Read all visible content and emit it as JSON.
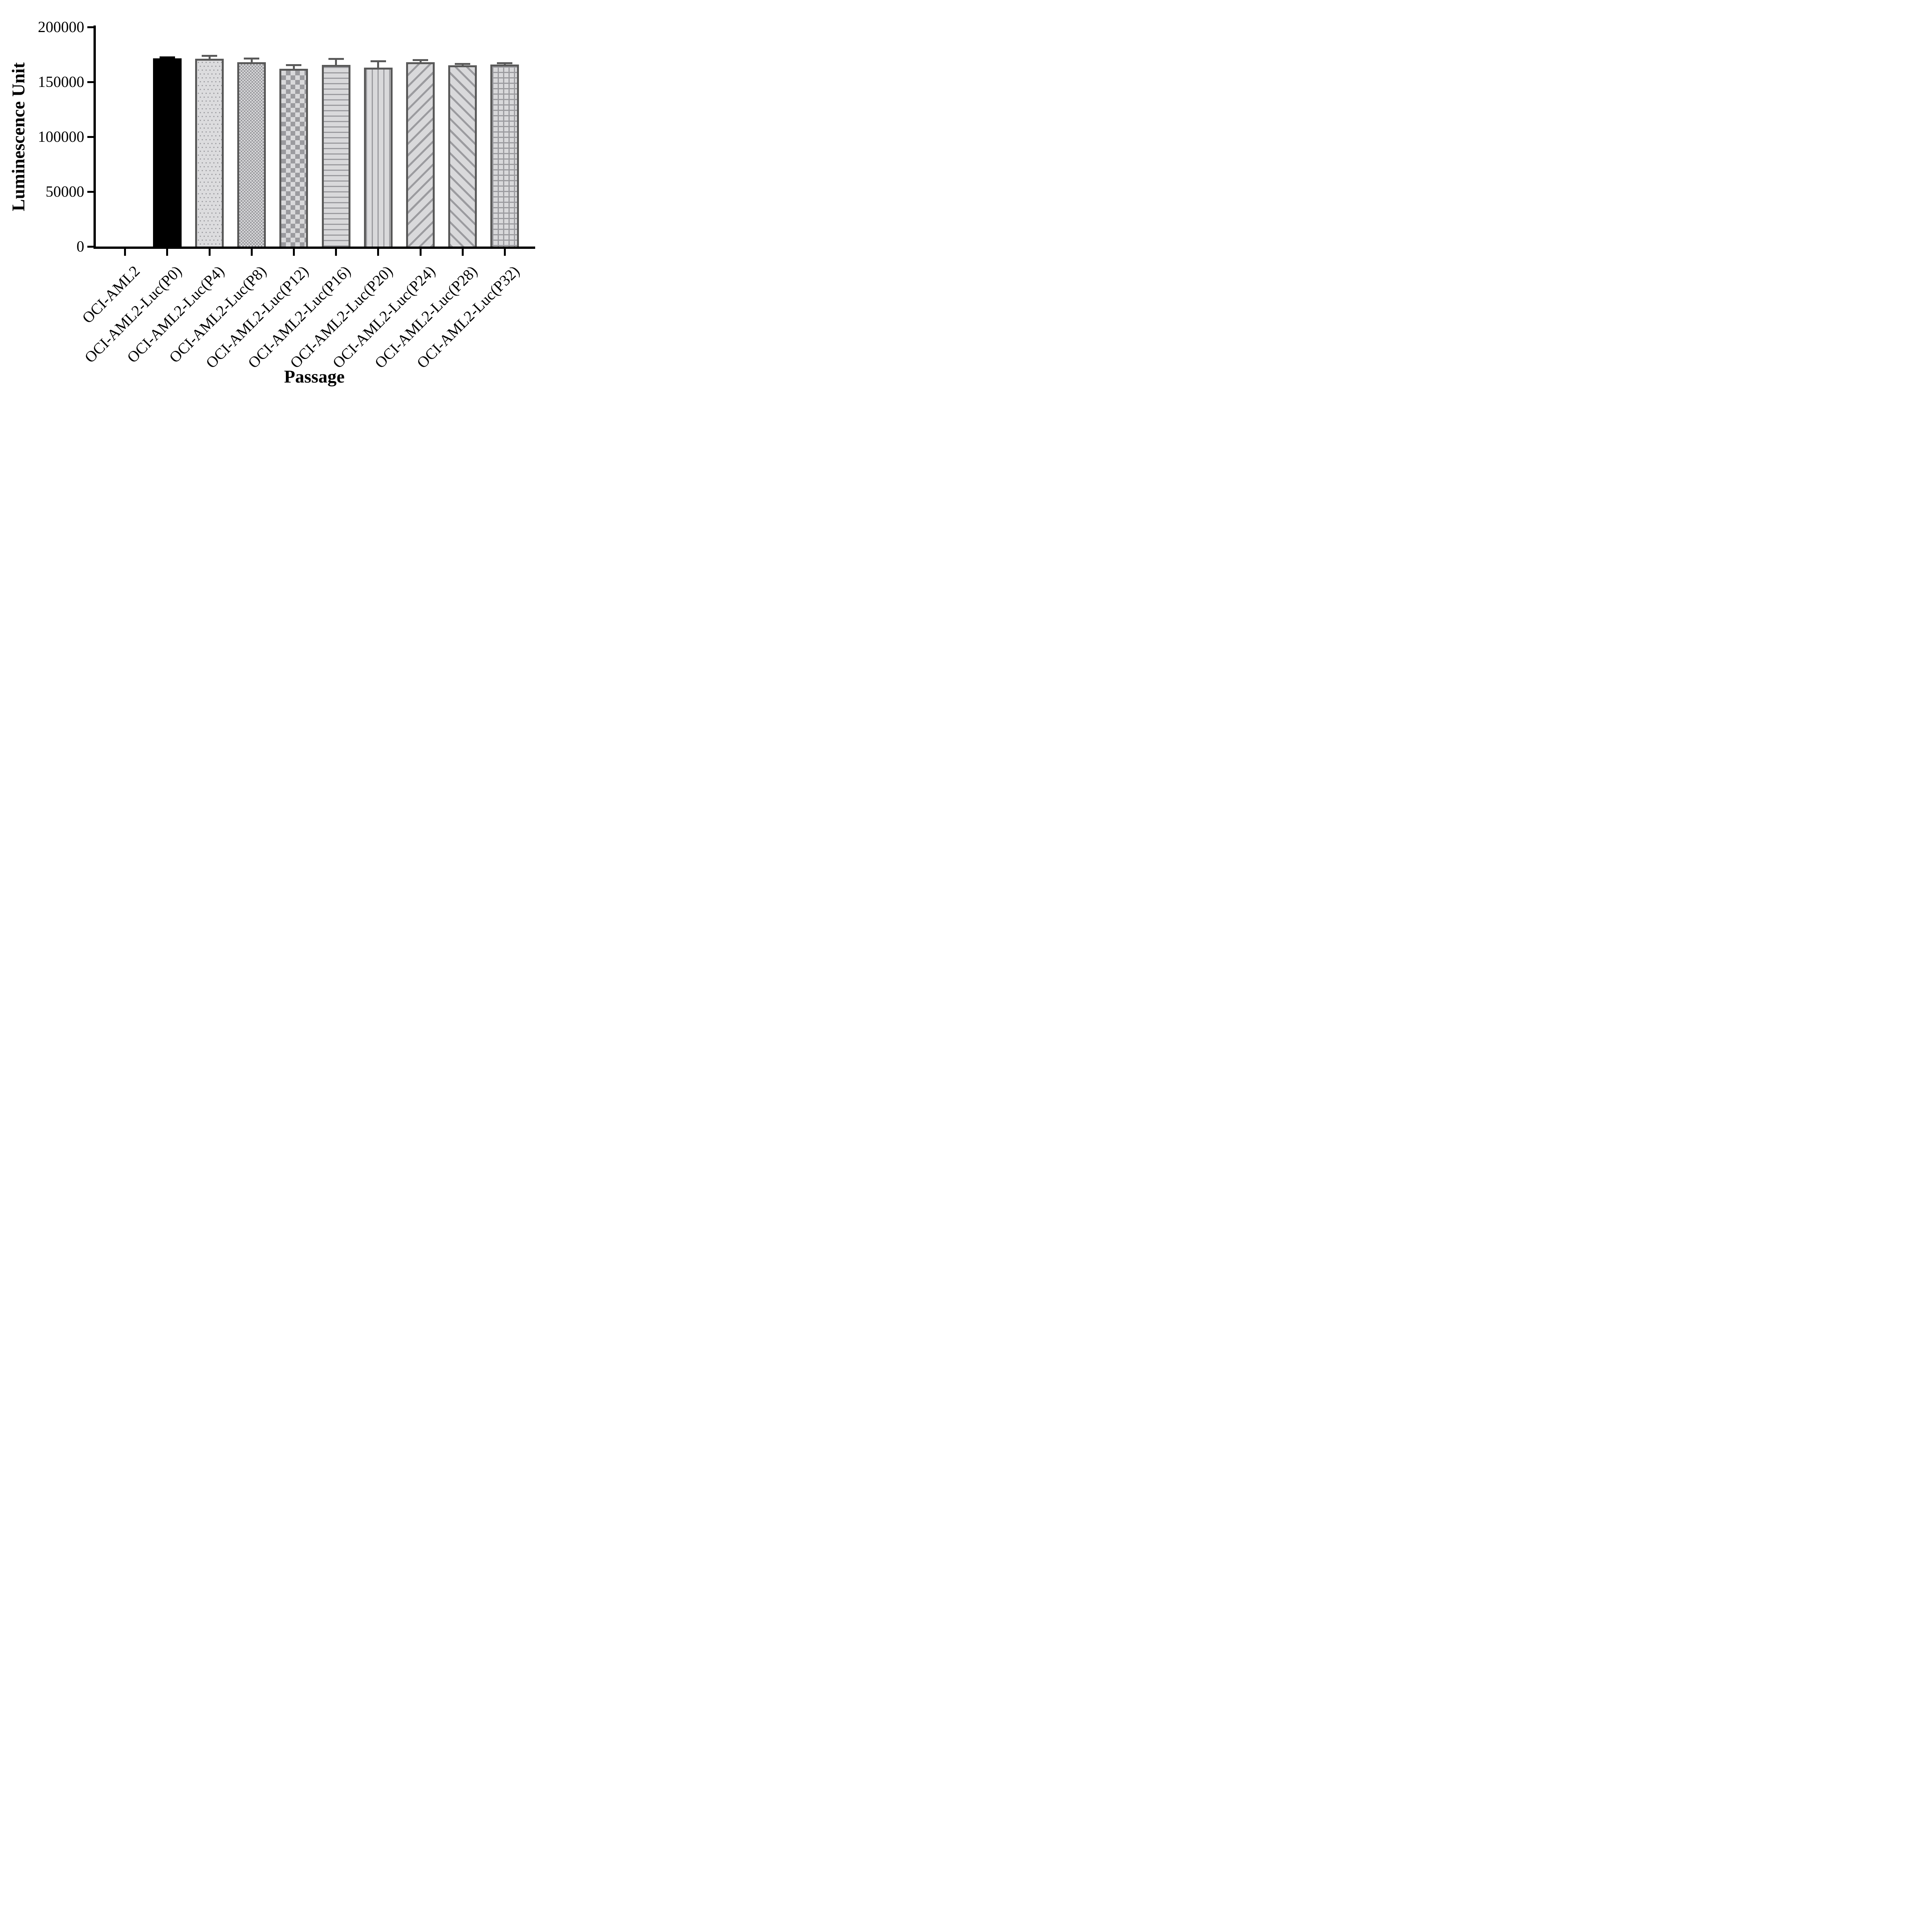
{
  "figure": {
    "background_color": "#ffffff",
    "axis_color": "#000000"
  },
  "chart_data": {
    "type": "bar",
    "title": "",
    "xlabel": "Passage",
    "ylabel": "Luminescence Unit",
    "ylim": [
      0,
      200000
    ],
    "ytick_interval": 50000,
    "yticks": [
      0,
      50000,
      100000,
      150000,
      200000
    ],
    "ytick_labels": [
      "0",
      "50000",
      "100000",
      "150000",
      "200000"
    ],
    "grid": false,
    "legend_position": "none",
    "x_label_rotation_deg": 45,
    "categories": [
      "OCI-AML2",
      "OCI-AML2-Luc(P0)",
      "OCI-AML2-Luc(P4)",
      "OCI-AML2-Luc(P8)",
      "OCI-AML2-Luc(P12)",
      "OCI-AML2-Luc(P16)",
      "OCI-AML2-Luc(P20)",
      "OCI-AML2-Luc(P24)",
      "OCI-AML2-Luc(P28)",
      "OCI-AML2-Luc(P32)"
    ],
    "values": [
      0,
      171400,
      171100,
      168000,
      162000,
      165500,
      163000,
      168000,
      165000,
      166000
    ],
    "errors_sd_upper": [
      0,
      1000,
      2500,
      3300,
      3200,
      5500,
      6000,
      1800,
      1500,
      1100
    ],
    "bar_patterns": [
      "none",
      "solid-black",
      "dots",
      "checker-fine",
      "checker-coarse",
      "lines-horizontal",
      "lines-vertical",
      "diagonal-up",
      "diagonal-down",
      "grid"
    ],
    "colors": {
      "solid_bar": "#000000",
      "bar_border": "#595959",
      "pattern_foreground": "#9b9b9f",
      "pattern_background": "#d9d9db",
      "error_bar": "#595959",
      "error_bar_first": "#000000",
      "axis": "#000000"
    }
  }
}
